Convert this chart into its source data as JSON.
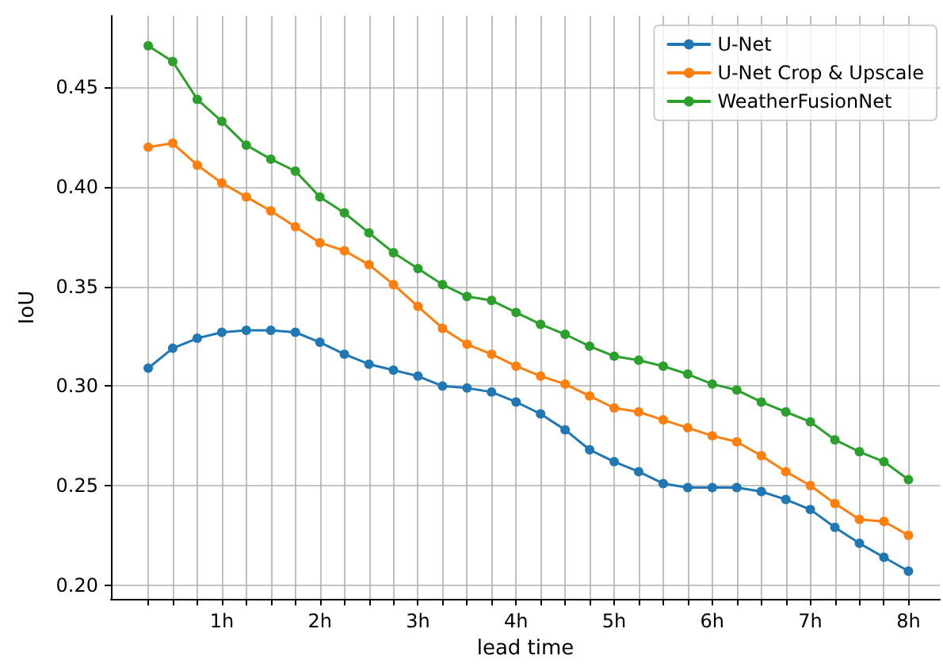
{
  "chart_data": {
    "type": "line",
    "xlabel": "lead time",
    "ylabel": "IoU",
    "x": [
      0.25,
      0.5,
      0.75,
      1,
      1.25,
      1.5,
      1.75,
      2,
      2.25,
      2.5,
      2.75,
      3,
      3.25,
      3.5,
      3.75,
      4,
      4.25,
      4.5,
      4.75,
      5,
      5.25,
      5.5,
      5.75,
      6,
      6.25,
      6.5,
      6.75,
      7,
      7.25,
      7.5,
      7.75,
      8
    ],
    "series": [
      {
        "name": "U-Net",
        "color": "#1f77b4",
        "values": [
          0.309,
          0.319,
          0.324,
          0.327,
          0.328,
          0.328,
          0.327,
          0.322,
          0.316,
          0.311,
          0.308,
          0.305,
          0.3,
          0.299,
          0.297,
          0.292,
          0.286,
          0.278,
          0.268,
          0.262,
          0.257,
          0.251,
          0.249,
          0.249,
          0.249,
          0.247,
          0.243,
          0.238,
          0.229,
          0.221,
          0.214,
          0.207
        ]
      },
      {
        "name": "U-Net Crop & Upscale",
        "color": "#ff7f0e",
        "values": [
          0.42,
          0.422,
          0.411,
          0.402,
          0.395,
          0.388,
          0.38,
          0.372,
          0.368,
          0.361,
          0.351,
          0.34,
          0.329,
          0.321,
          0.316,
          0.31,
          0.305,
          0.301,
          0.295,
          0.289,
          0.287,
          0.283,
          0.279,
          0.275,
          0.272,
          0.265,
          0.257,
          0.25,
          0.241,
          0.233,
          0.232,
          0.225
        ]
      },
      {
        "name": "WeatherFusionNet",
        "color": "#2ca02c",
        "values": [
          0.471,
          0.463,
          0.444,
          0.433,
          0.421,
          0.414,
          0.408,
          0.395,
          0.387,
          0.377,
          0.367,
          0.359,
          0.351,
          0.345,
          0.343,
          0.337,
          0.331,
          0.326,
          0.32,
          0.315,
          0.313,
          0.31,
          0.306,
          0.301,
          0.298,
          0.292,
          0.287,
          0.282,
          0.273,
          0.267,
          0.262,
          0.253
        ]
      }
    ],
    "xlim": [
      -0.13,
      8.32
    ],
    "xticks": [
      {
        "value": 0.25,
        "label": null
      },
      {
        "value": 0.5,
        "label": null
      },
      {
        "value": 0.75,
        "label": null
      },
      {
        "value": 1,
        "label": "1h"
      },
      {
        "value": 1.25,
        "label": null
      },
      {
        "value": 1.5,
        "label": null
      },
      {
        "value": 1.75,
        "label": null
      },
      {
        "value": 2,
        "label": "2h"
      },
      {
        "value": 2.25,
        "label": null
      },
      {
        "value": 2.5,
        "label": null
      },
      {
        "value": 2.75,
        "label": null
      },
      {
        "value": 3,
        "label": "3h"
      },
      {
        "value": 3.25,
        "label": null
      },
      {
        "value": 3.5,
        "label": null
      },
      {
        "value": 3.75,
        "label": null
      },
      {
        "value": 4,
        "label": "4h"
      },
      {
        "value": 4.25,
        "label": null
      },
      {
        "value": 4.5,
        "label": null
      },
      {
        "value": 4.75,
        "label": null
      },
      {
        "value": 5,
        "label": "5h"
      },
      {
        "value": 5.25,
        "label": null
      },
      {
        "value": 5.5,
        "label": null
      },
      {
        "value": 5.75,
        "label": null
      },
      {
        "value": 6,
        "label": "6h"
      },
      {
        "value": 6.25,
        "label": null
      },
      {
        "value": 6.5,
        "label": null
      },
      {
        "value": 6.75,
        "label": null
      },
      {
        "value": 7,
        "label": "7h"
      },
      {
        "value": 7.25,
        "label": null
      },
      {
        "value": 7.5,
        "label": null
      },
      {
        "value": 7.75,
        "label": null
      },
      {
        "value": 8,
        "label": "8h"
      }
    ],
    "ylim": [
      0.193,
      0.486
    ],
    "yticks": [
      {
        "value": 0.2,
        "label": "0.20"
      },
      {
        "value": 0.25,
        "label": "0.25"
      },
      {
        "value": 0.3,
        "label": "0.30"
      },
      {
        "value": 0.35,
        "label": "0.35"
      },
      {
        "value": 0.4,
        "label": "0.40"
      },
      {
        "value": 0.45,
        "label": "0.45"
      }
    ],
    "grid": true,
    "legend": "top right",
    "marker": "circle",
    "line_style": "solid"
  }
}
